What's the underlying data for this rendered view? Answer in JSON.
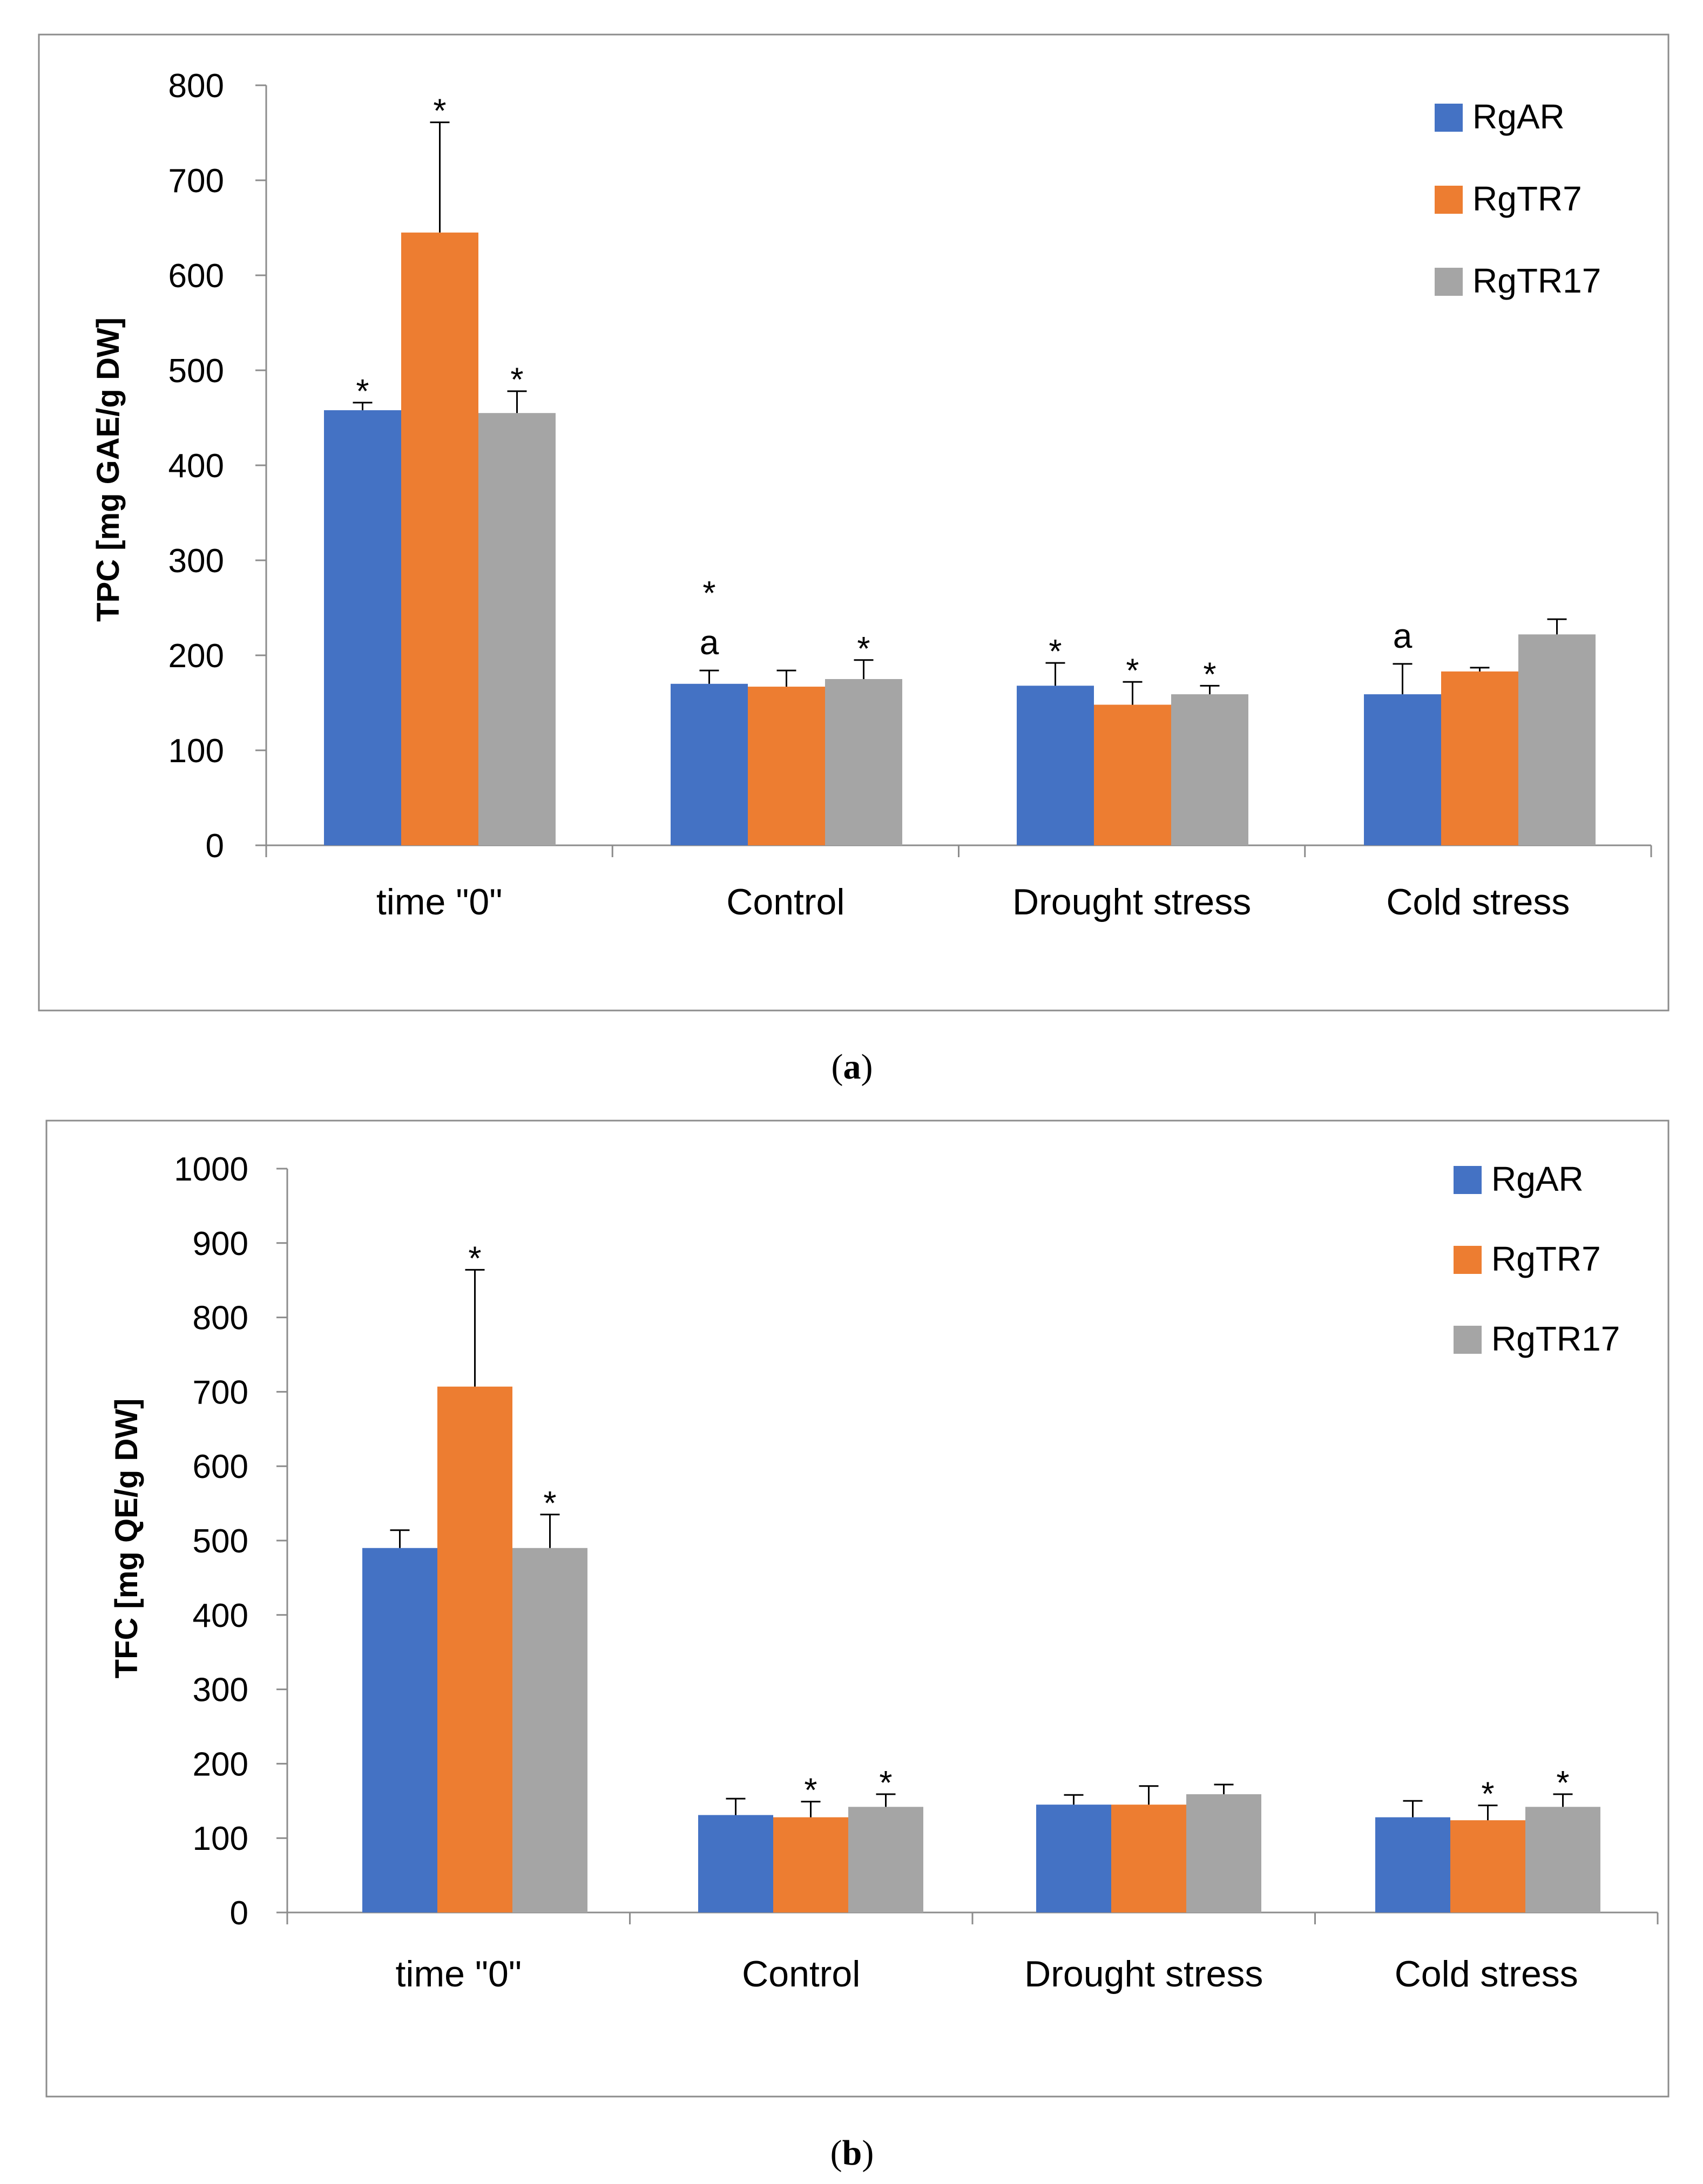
{
  "colors": {
    "RgAR": "#4472C4",
    "RgTR7": "#ED7D31",
    "RgTR17": "#A5A5A5"
  },
  "chart_data": [
    {
      "id": "a",
      "type": "bar",
      "caption_label": "a",
      "ylabel": "TPC [mg GAE/g DW]",
      "ylim": [
        0,
        800
      ],
      "yticks": [
        0,
        100,
        200,
        300,
        400,
        500,
        600,
        700,
        800
      ],
      "categories": [
        "time \"0\"",
        "Control",
        "Drought stress",
        "Cold stress"
      ],
      "legend_position": "top-right",
      "series": [
        {
          "name": "RgAR",
          "values": [
            458,
            170,
            168,
            159
          ],
          "errors": [
            8,
            14,
            24,
            32
          ],
          "marks": [
            [
              "*"
            ],
            [
              "*",
              "a"
            ],
            [
              "*"
            ],
            [
              "a"
            ]
          ]
        },
        {
          "name": "RgTR7",
          "values": [
            645,
            167,
            148,
            183
          ],
          "errors": [
            116,
            17,
            24,
            4
          ],
          "marks": [
            [
              "*"
            ],
            [],
            [
              "*"
            ],
            []
          ]
        },
        {
          "name": "RgTR17",
          "values": [
            455,
            175,
            159,
            222
          ],
          "errors": [
            23,
            20,
            9,
            16
          ],
          "marks": [
            [
              "*"
            ],
            [
              "*"
            ],
            [
              "*"
            ],
            []
          ]
        }
      ]
    },
    {
      "id": "b",
      "type": "bar",
      "caption_label": "b",
      "ylabel": "TFC [mg QE/g DW]",
      "ylim": [
        0,
        1000
      ],
      "yticks": [
        0,
        100,
        200,
        300,
        400,
        500,
        600,
        700,
        800,
        900,
        1000
      ],
      "categories": [
        "time \"0\"",
        "Control",
        "Drought stress",
        "Cold stress"
      ],
      "legend_position": "top-right",
      "series": [
        {
          "name": "RgAR",
          "values": [
            490,
            131,
            145,
            128
          ],
          "errors": [
            24,
            22,
            13,
            22
          ],
          "marks": [
            [],
            [],
            [],
            []
          ]
        },
        {
          "name": "RgTR7",
          "values": [
            707,
            128,
            145,
            124
          ],
          "errors": [
            157,
            21,
            25,
            20
          ],
          "marks": [
            [
              "*"
            ],
            [
              "*"
            ],
            [],
            [
              "*"
            ]
          ]
        },
        {
          "name": "RgTR17",
          "values": [
            490,
            142,
            159,
            142
          ],
          "errors": [
            45,
            17,
            13,
            17
          ],
          "marks": [
            [
              "*"
            ],
            [
              "*"
            ],
            [],
            [
              "*"
            ]
          ]
        }
      ]
    }
  ]
}
